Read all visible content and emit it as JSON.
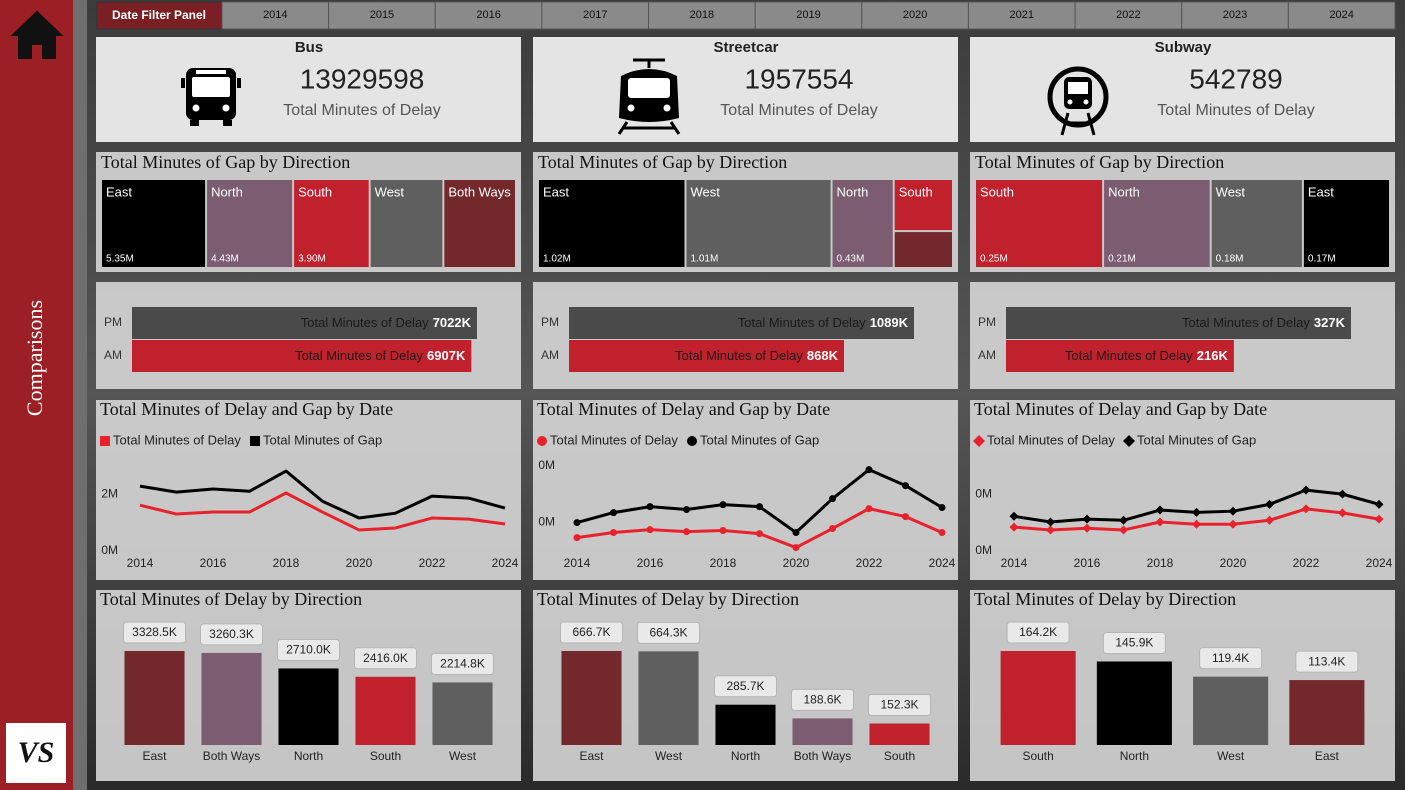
{
  "sidebar": {
    "title": "Comparisons",
    "logo": "VS"
  },
  "filter_panel": {
    "title": "Date Filter Panel",
    "years": [
      2014,
      2015,
      2016,
      2017,
      2018,
      2019,
      2020,
      2021,
      2022,
      2023,
      2024
    ]
  },
  "cards": [
    {
      "title": "Bus",
      "value": 13929598,
      "label": "Total Minutes of Delay"
    },
    {
      "title": "Streetcar",
      "value": 1957554,
      "label": "Total Minutes of Delay"
    },
    {
      "title": "Subway",
      "value": 542789,
      "label": "Total Minutes of Delay"
    }
  ],
  "chart_data": [
    {
      "type": "treemap",
      "title": "Total Minutes of Gap by Direction",
      "categories": [
        "East",
        "North",
        "South",
        "West",
        "Both Ways"
      ],
      "values": [
        5.35,
        4.43,
        3.9,
        3.75,
        3.7
      ],
      "value_labels": [
        "5.35M",
        "4.43M",
        "3.90M",
        null,
        null
      ],
      "colors": [
        "#000000",
        "#7b5c70",
        "#c1202d",
        "#5f5f5f",
        "#73292c"
      ]
    },
    {
      "type": "treemap",
      "title": "Total Minutes of Gap by Direction",
      "categories": [
        "East",
        "West",
        "North",
        "South",
        null
      ],
      "values": [
        1.02,
        1.01,
        0.43,
        0.24,
        0.17
      ],
      "value_labels": [
        "1.02M",
        "1.01M",
        "0.43M",
        null,
        null
      ],
      "colors": [
        "#000000",
        "#5f5f5f",
        "#7b5c70",
        "#c1202d",
        "#73292c"
      ]
    },
    {
      "type": "treemap",
      "title": "Total Minutes of Gap by Direction",
      "categories": [
        "South",
        "North",
        "West",
        "East"
      ],
      "values": [
        0.25,
        0.21,
        0.18,
        0.17
      ],
      "value_labels": [
        "0.25M",
        "0.21M",
        "0.18M",
        "0.17M"
      ],
      "colors": [
        "#c1202d",
        "#7b5c70",
        "#5f5f5f",
        "#000000"
      ]
    },
    {
      "type": "hbar",
      "value_name": "Total Minutes of Delay",
      "categories": [
        "PM",
        "AM"
      ],
      "values": [
        7022,
        6907
      ],
      "value_labels": [
        "7022K",
        "6907K"
      ],
      "colors": [
        "#4a4a4a",
        "#c1202d"
      ]
    },
    {
      "type": "hbar",
      "value_name": "Total Minutes of Delay",
      "categories": [
        "PM",
        "AM"
      ],
      "values": [
        1089,
        868
      ],
      "value_labels": [
        "1089K",
        "868K"
      ],
      "colors": [
        "#4a4a4a",
        "#c1202d"
      ]
    },
    {
      "type": "hbar",
      "value_name": "Total Minutes of Delay",
      "categories": [
        "PM",
        "AM"
      ],
      "values": [
        327,
        216
      ],
      "value_labels": [
        "327K",
        "216K"
      ],
      "colors": [
        "#4a4a4a",
        "#c1202d"
      ]
    },
    {
      "type": "line",
      "title": "Total Minutes of Delay and Gap by Date",
      "x": [
        2014,
        2015,
        2016,
        2017,
        2018,
        2019,
        2020,
        2021,
        2022,
        2023,
        2024
      ],
      "xlim": [
        2014,
        2024
      ],
      "xticks": [
        2014,
        2016,
        2018,
        2020,
        2022,
        2024
      ],
      "ylim": [
        0,
        3.2
      ],
      "yticks": [
        {
          "value": 0,
          "label": "0M"
        },
        {
          "value": 2,
          "label": "2M"
        }
      ],
      "legend_marker": "square",
      "point_markers": false,
      "series": [
        {
          "name": "Total Minutes of Delay",
          "color": "#e8222c",
          "values": [
            1.61,
            1.3,
            1.37,
            1.37,
            2.04,
            1.37,
            0.74,
            0.81,
            1.16,
            1.12,
            0.95
          ]
        },
        {
          "name": "Total Minutes of Gap",
          "color": "#000000",
          "values": [
            2.28,
            2.07,
            2.18,
            2.1,
            2.81,
            1.75,
            1.16,
            1.33,
            1.93,
            1.86,
            1.51
          ]
        }
      ]
    },
    {
      "type": "line",
      "title": "Total Minutes of Delay and Gap by Date",
      "x": [
        2014,
        2015,
        2016,
        2017,
        2018,
        2019,
        2020,
        2021,
        2022,
        2023,
        2024
      ],
      "xlim": [
        2014,
        2024
      ],
      "xticks": [
        2014,
        2016,
        2018,
        2020,
        2022,
        2024
      ],
      "ylim": [
        0.1,
        0.42
      ],
      "yticks": [
        {
          "value": 0.2,
          "label": "0M"
        },
        {
          "value": 0.4,
          "label": "0M"
        }
      ],
      "legend_marker": "circle",
      "point_markers": true,
      "series": [
        {
          "name": "Total Minutes of Delay",
          "color": "#e8222c",
          "values": [
            0.147,
            0.165,
            0.175,
            0.168,
            0.172,
            0.161,
            0.112,
            0.179,
            0.249,
            0.221,
            0.165
          ]
        },
        {
          "name": "Total Minutes of Gap",
          "color": "#000000",
          "values": [
            0.2,
            0.235,
            0.256,
            0.246,
            0.263,
            0.256,
            0.165,
            0.284,
            0.386,
            0.33,
            0.253
          ]
        }
      ]
    },
    {
      "type": "line",
      "title": "Total Minutes of Delay and Gap by Date",
      "x": [
        2014,
        2015,
        2016,
        2017,
        2018,
        2019,
        2020,
        2021,
        2022,
        2023,
        2024
      ],
      "xlim": [
        2014,
        2024
      ],
      "xticks": [
        2014,
        2016,
        2018,
        2020,
        2022,
        2024
      ],
      "ylim": [
        0,
        0.16
      ],
      "yticks": [
        {
          "value": 0,
          "label": "0M"
        },
        {
          "value": 0.1,
          "label": "0M"
        }
      ],
      "legend_marker": "diamond",
      "point_markers": true,
      "series": [
        {
          "name": "Total Minutes of Delay",
          "color": "#e8222c",
          "values": [
            0.042,
            0.037,
            0.04,
            0.037,
            0.051,
            0.047,
            0.047,
            0.054,
            0.074,
            0.067,
            0.056
          ]
        },
        {
          "name": "Total Minutes of Gap",
          "color": "#000000",
          "values": [
            0.061,
            0.051,
            0.056,
            0.054,
            0.072,
            0.068,
            0.07,
            0.082,
            0.107,
            0.1,
            0.082
          ]
        }
      ]
    },
    {
      "type": "bar",
      "title": "Total Minutes of Delay by Direction",
      "categories": [
        "East",
        "Both Ways",
        "North",
        "South",
        "West"
      ],
      "values": [
        3328.5,
        3260.3,
        2710.0,
        2416.0,
        2214.8
      ],
      "value_labels": [
        "3328.5K",
        "3260.3K",
        "2710.0K",
        "2416.0K",
        "2214.8K"
      ],
      "colors": [
        "#73292c",
        "#7b5c70",
        "#000000",
        "#c1202d",
        "#5f5f5f"
      ]
    },
    {
      "type": "bar",
      "title": "Total Minutes of Delay by Direction",
      "categories": [
        "East",
        "West",
        "North",
        "Both Ways",
        "South"
      ],
      "values": [
        666.7,
        664.3,
        285.7,
        188.6,
        152.3
      ],
      "value_labels": [
        "666.7K",
        "664.3K",
        "285.7K",
        "188.6K",
        "152.3K"
      ],
      "colors": [
        "#73292c",
        "#5f5f5f",
        "#000000",
        "#7b5c70",
        "#c1202d"
      ]
    },
    {
      "type": "bar",
      "title": "Total Minutes of Delay by Direction",
      "categories": [
        "South",
        "North",
        "West",
        "East"
      ],
      "values": [
        164.2,
        145.9,
        119.4,
        113.4
      ],
      "value_labels": [
        "164.2K",
        "145.9K",
        "119.4K",
        "113.4K"
      ],
      "colors": [
        "#c1202d",
        "#000000",
        "#5f5f5f",
        "#73292c"
      ]
    }
  ]
}
